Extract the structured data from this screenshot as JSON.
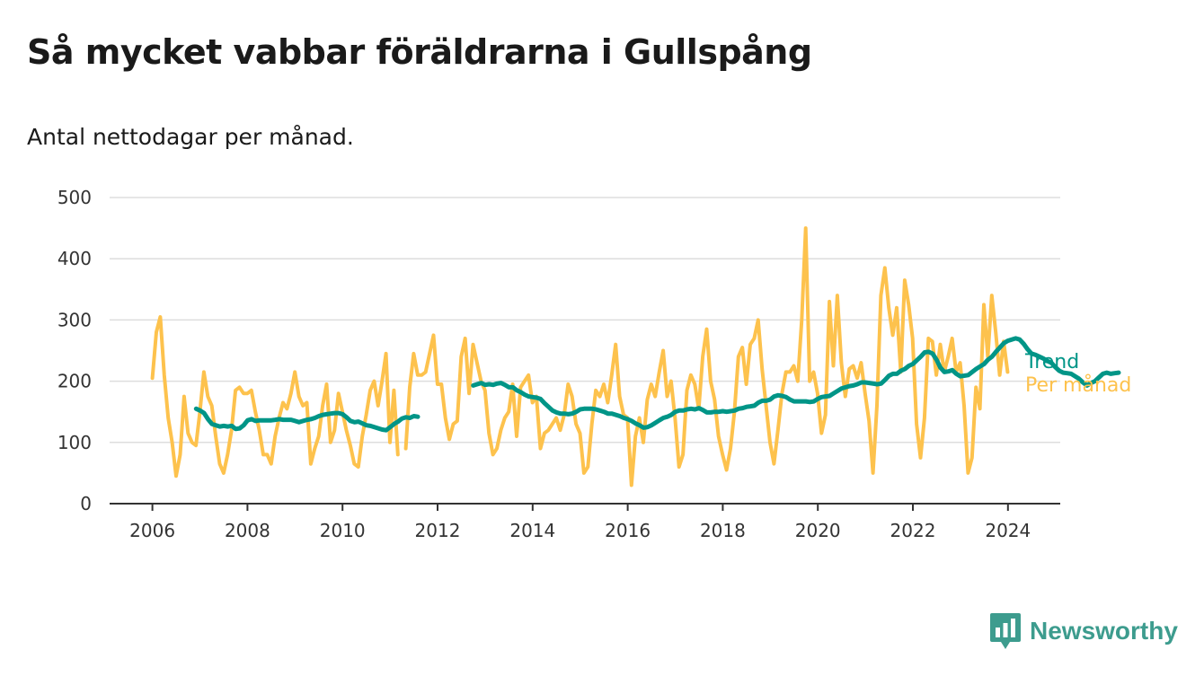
{
  "title": "Så mycket vabbar föräldrarna i Gullspång",
  "subtitle": "Antal nettodagar per månad.",
  "colors": {
    "per_month": "#FDC24D",
    "trend": "#009587",
    "grid": "#dddddd",
    "axis": "#333333",
    "brand": "#3d9c8e"
  },
  "brand": {
    "name": "Newsworthy",
    "icon": "chart-badge-icon"
  },
  "chart_data": {
    "type": "line",
    "title": "Så mycket vabbar föräldrarna i Gullspång",
    "subtitle": "Antal nettodagar per månad.",
    "xlabel": "",
    "ylabel": "",
    "xlim": [
      2005.1,
      2025.1
    ],
    "ylim": [
      0,
      500
    ],
    "x_ticks": [
      2006,
      2008,
      2010,
      2012,
      2014,
      2016,
      2018,
      2020,
      2022,
      2024
    ],
    "y_ticks": [
      0,
      100,
      200,
      300,
      400,
      500
    ],
    "grid": true,
    "legend": "end-of-line labels",
    "series": [
      {
        "name": "Per månad",
        "key": "per_month",
        "start": 2006.0,
        "step": 0.0833,
        "values": [
          205,
          280,
          305,
          210,
          140,
          100,
          45,
          80,
          175,
          115,
          100,
          95,
          150,
          215,
          175,
          160,
          110,
          65,
          50,
          80,
          120,
          185,
          190,
          180,
          180,
          185,
          150,
          120,
          80,
          80,
          65,
          110,
          140,
          165,
          155,
          180,
          215,
          175,
          160,
          165,
          65,
          90,
          110,
          160,
          195,
          100,
          120,
          180,
          150,
          120,
          95,
          65,
          60,
          110,
          145,
          185,
          200,
          160,
          200,
          245,
          100,
          185,
          80,
          null,
          90,
          190,
          245,
          210,
          210,
          215,
          245,
          275,
          195,
          195,
          140,
          105,
          130,
          135,
          240,
          270,
          180,
          260,
          230,
          200,
          185,
          115,
          80,
          90,
          120,
          140,
          150,
          195,
          110,
          190,
          200,
          210,
          165,
          175,
          90,
          115,
          120,
          130,
          140,
          120,
          145,
          195,
          175,
          130,
          115,
          50,
          60,
          130,
          185,
          175,
          195,
          165,
          210,
          260,
          175,
          145,
          140,
          30,
          110,
          140,
          100,
          170,
          195,
          175,
          215,
          250,
          175,
          200,
          140,
          60,
          80,
          185,
          210,
          195,
          155,
          240,
          285,
          200,
          170,
          110,
          80,
          55,
          90,
          150,
          240,
          255,
          195,
          260,
          270,
          300,
          220,
          160,
          100,
          65,
          120,
          180,
          215,
          215,
          225,
          200,
          300,
          450,
          200,
          215,
          180,
          115,
          145,
          330,
          225,
          340,
          230,
          175,
          220,
          225,
          205,
          230,
          180,
          135,
          50,
          160,
          340,
          385,
          320,
          275,
          320,
          215,
          365,
          325,
          270,
          130,
          75,
          140,
          270,
          265,
          210,
          260,
          215,
          240,
          270,
          215,
          230,
          160,
          50,
          75,
          190,
          155,
          325,
          240,
          340,
          280,
          210,
          265,
          215
        ]
      },
      {
        "name": "Trend",
        "key": "trend",
        "start": 2006.92,
        "step": 0.0833,
        "values": [
          155,
          152,
          148,
          138,
          130,
          128,
          126,
          127,
          126,
          127,
          122,
          123,
          128,
          136,
          138,
          135,
          136,
          136,
          136,
          136,
          137,
          138,
          137,
          137,
          137,
          135,
          133,
          135,
          137,
          138,
          140,
          143,
          145,
          146,
          147,
          148,
          148,
          146,
          141,
          135,
          133,
          134,
          131,
          128,
          127,
          125,
          123,
          121,
          120,
          125,
          130,
          134,
          139,
          141,
          140,
          143,
          142,
          null,
          null,
          null,
          null,
          null,
          null,
          null,
          null,
          null,
          null,
          null,
          null,
          null,
          193,
          195,
          197,
          194,
          195,
          194,
          196,
          197,
          194,
          190,
          190,
          185,
          182,
          178,
          175,
          174,
          173,
          171,
          164,
          158,
          152,
          149,
          147,
          147,
          146,
          147,
          150,
          154,
          155,
          155,
          155,
          154,
          152,
          150,
          147,
          147,
          145,
          143,
          140,
          138,
          135,
          131,
          128,
          124,
          125,
          128,
          132,
          136,
          140,
          142,
          145,
          150,
          152,
          152,
          154,
          155,
          154,
          156,
          153,
          149,
          149,
          150,
          150,
          151,
          150,
          151,
          152,
          155,
          156,
          158,
          159,
          160,
          165,
          168,
          168,
          170,
          175,
          177,
          176,
          174,
          170,
          167,
          167,
          167,
          167,
          166,
          167,
          171,
          174,
          175,
          176,
          180,
          184,
          188,
          190,
          192,
          193,
          195,
          198,
          198,
          197,
          196,
          195,
          196,
          202,
          209,
          212,
          212,
          217,
          220,
          225,
          228,
          234,
          240,
          247,
          248,
          245,
          235,
          222,
          215,
          216,
          218,
          212,
          208,
          209,
          210,
          215,
          220,
          224,
          228,
          235,
          240,
          248,
          255,
          262,
          266,
          268,
          270,
          268,
          261,
          252,
          245,
          243,
          240,
          237,
          233,
          230,
          223,
          217,
          214,
          213,
          212,
          208,
          204,
          198,
          193,
          197,
          200,
          206,
          212,
          214,
          212,
          213,
          214
        ]
      }
    ]
  }
}
